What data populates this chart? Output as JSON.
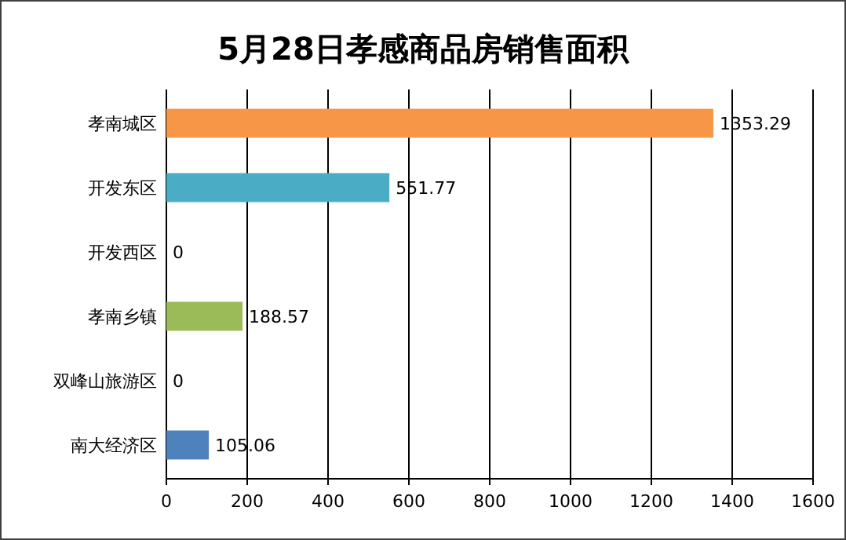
{
  "chart_data": {
    "type": "bar",
    "orientation": "horizontal",
    "title": "5月28日孝感商品房销售面积",
    "categories": [
      "孝南城区",
      "开发东区",
      "开发西区",
      "孝南乡镇",
      "双峰山旅游区",
      "南大经济区"
    ],
    "values": [
      1353.29,
      551.77,
      0,
      188.57,
      0,
      105.06
    ],
    "colors": [
      "#f79646",
      "#4bacc6",
      "#c0504d",
      "#9bbb59",
      "#8064a2",
      "#4f81bd"
    ],
    "xlim": [
      0,
      1600
    ],
    "xticks": [
      0,
      200,
      400,
      600,
      800,
      1000,
      1200,
      1400,
      1600
    ],
    "grid": "x",
    "data_labels": true
  }
}
